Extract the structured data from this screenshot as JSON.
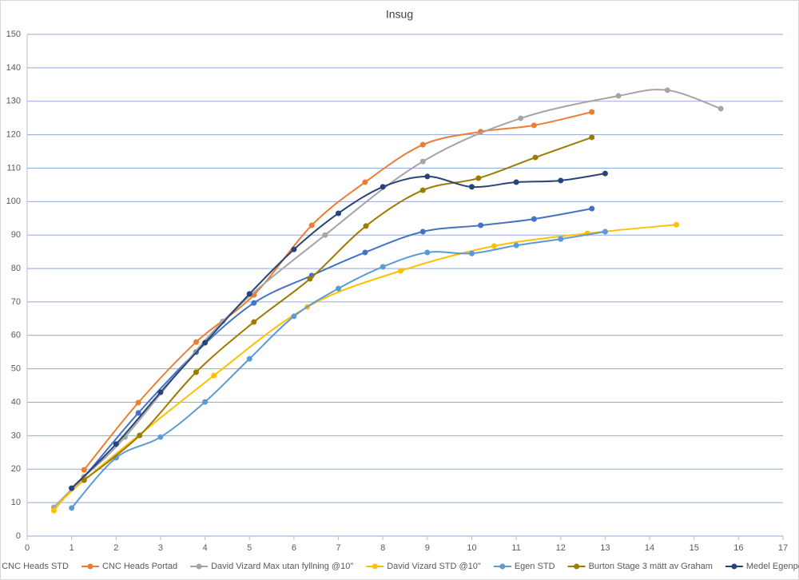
{
  "chart_data": {
    "type": "scatter",
    "smooth": true,
    "title": "Insug",
    "xlim": [
      0,
      17
    ],
    "xticks": [
      0,
      1,
      2,
      3,
      4,
      5,
      6,
      7,
      8,
      9,
      10,
      11,
      12,
      13,
      14,
      15,
      16,
      17
    ],
    "ylim": [
      0,
      150
    ],
    "yticks": [
      0,
      10,
      20,
      30,
      40,
      50,
      60,
      70,
      80,
      90,
      100,
      110,
      120,
      130,
      140,
      150
    ],
    "grid": true,
    "legend": "bottom",
    "series": [
      {
        "name": "CNC Heads STD",
        "color": "#4472c4",
        "x": [
          1.0,
          1.28,
          2.5,
          3.8,
          5.1,
          6.4,
          7.6,
          8.9,
          10.2,
          11.4,
          12.7
        ],
        "values": [
          14.3,
          17.7,
          36.8,
          55,
          69.7,
          77.9,
          84.8,
          91,
          92.9,
          94.8,
          97.9
        ]
      },
      {
        "name": "CNC Heads Portad",
        "color": "#ed7d31",
        "x": [
          1.28,
          2.5,
          3.8,
          5.1,
          6.4,
          7.6,
          8.9,
          10.2,
          11.4,
          12.7
        ],
        "values": [
          19.8,
          39.9,
          58,
          72.1,
          92.9,
          105.8,
          117,
          120.9,
          122.8,
          126.8
        ]
      },
      {
        "name": "David Vizard Max utan fyllning @10\"",
        "color": "#a5a5a5",
        "x": [
          0.6,
          1.28,
          2.2,
          4.4,
          6.7,
          8.9,
          11.1,
          13.3,
          14.4,
          15.6
        ],
        "values": [
          8.6,
          17.7,
          29.6,
          64.2,
          90,
          112,
          124.9,
          131.6,
          133.3,
          127.8
        ]
      },
      {
        "name": "David Vizard STD @10\"",
        "color": "#ffc000",
        "x": [
          0.6,
          1.28,
          4.2,
          6.3,
          8.4,
          10.5,
          12.6,
          14.6
        ],
        "values": [
          7.6,
          16.7,
          48,
          68.5,
          79.3,
          86.7,
          90.5,
          93.1
        ]
      },
      {
        "name": "Egen STD",
        "color": "#5b9bd5",
        "x": [
          1,
          2,
          3,
          4,
          5,
          6,
          7,
          8,
          9,
          10,
          11,
          12,
          13
        ],
        "values": [
          8.4,
          23.4,
          29.6,
          40.1,
          53,
          65.7,
          74,
          80.5,
          84.8,
          84.5,
          86.9,
          88.8,
          91
        ]
      },
      {
        "name": "Burton Stage 3 mätt av Graham",
        "color": "#9e7a00",
        "x": [
          1.28,
          2.53,
          3.8,
          5.1,
          6.36,
          7.62,
          8.9,
          10.15,
          11.43,
          12.7
        ],
        "values": [
          16.7,
          30.1,
          49,
          64,
          76.9,
          92.7,
          103.4,
          107,
          113.2,
          119.2
        ]
      },
      {
        "name": "Medel Egenportad",
        "color": "#264478",
        "x": [
          1,
          2,
          3,
          4,
          5,
          6,
          7,
          8,
          9,
          10,
          11,
          12,
          13
        ],
        "values": [
          14.3,
          27.5,
          43,
          57.8,
          72.4,
          85.7,
          96.5,
          104.4,
          107.5,
          104.4,
          105.8,
          106.3,
          108.4
        ]
      }
    ]
  }
}
